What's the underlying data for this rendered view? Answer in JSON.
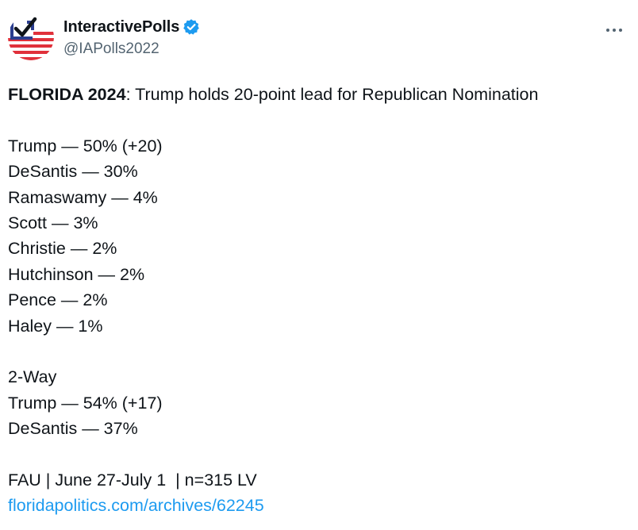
{
  "account": {
    "display_name": "InteractivePolls",
    "handle": "@IAPolls2022",
    "verified": true,
    "accent_color": "#1d9bf0"
  },
  "icons": {
    "avatar": "checkbox-flag-logo-icon",
    "verified": "verified-badge-icon",
    "more": "more-horizontal-icon"
  },
  "post": {
    "headline_bold": "FLORIDA 2024",
    "headline_rest": ": Trump holds 20-point lead for Republican Nomination",
    "results": [
      "Trump — 50% (+20)",
      "DeSantis — 30%",
      "Ramaswamy — 4%",
      "Scott — 3%",
      "Christie — 2%",
      "Hutchinson — 2%",
      "Pence — 2%",
      "Haley — 1%"
    ],
    "two_way_title": "2-Way",
    "two_way_results": [
      "Trump — 54% (+17)",
      "DeSantis — 37%"
    ],
    "source": "FAU | June 27-July 1  | n=315 LV",
    "link": "floridapolitics.com/archives/62245"
  }
}
